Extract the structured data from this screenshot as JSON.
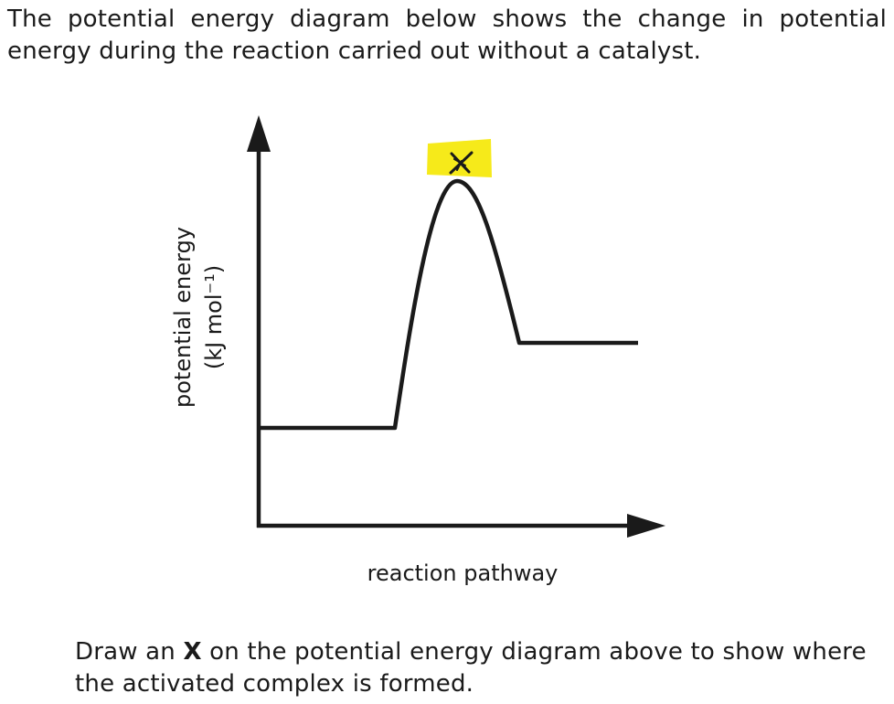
{
  "intro_text": "The potential energy diagram below shows the change in potential energy during the reaction carried out without a catalyst.",
  "diagram": {
    "y_axis_label": "potential energy",
    "y_axis_unit": "(kJ mol⁻¹)",
    "x_axis_label": "reaction pathway",
    "activated_complex_mark": "X",
    "mark_highlight_color": "#f6ea1a"
  },
  "task": {
    "text_before": "Draw an ",
    "bold_mark": "X",
    "text_after": " on the potential energy diagram above to show where the activated complex is formed."
  }
}
